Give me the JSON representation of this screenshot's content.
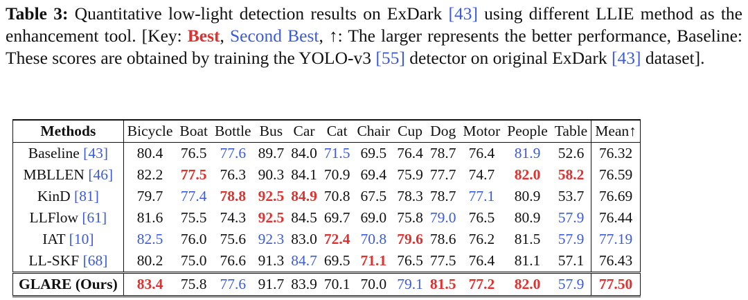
{
  "caption": {
    "label": "Table 3:",
    "parts": [
      {
        "text": " Quantitative low-light detection results on ExDark "
      },
      {
        "text": "[43]",
        "color": "#3b5bdb"
      },
      {
        "text": " using different LLIE method as the enhancement tool. [Key: "
      },
      {
        "text": "Best",
        "color": "#e03131",
        "bold": true
      },
      {
        "text": ", "
      },
      {
        "text": "Second Best",
        "color": "#3b5bdb"
      },
      {
        "text": ", ↑: The larger represents the better performance, Baseline: These scores are obtained by training the YOLO-v3 "
      },
      {
        "text": "[55]",
        "color": "#3b5bdb"
      },
      {
        "text": " detector on original ExDark "
      },
      {
        "text": "[43]",
        "color": "#3b5bdb"
      },
      {
        "text": " dataset]."
      }
    ]
  },
  "table": {
    "styles": {
      "best": {
        "color": "#e03131",
        "bold": true
      },
      "second": {
        "color": "#3b5bdb",
        "bold": false
      }
    },
    "cite_color": "#3b5bdb",
    "header": [
      "Methods",
      "Bicycle",
      "Boat",
      "Bottle",
      "Bus",
      "Car",
      "Cat",
      "Chair",
      "Cup",
      "Dog",
      "Motor",
      "People",
      "Table",
      "Mean↑"
    ],
    "rows": [
      {
        "name": "Baseline",
        "cite": "[43]",
        "bold": false,
        "values": [
          "80.4",
          "76.5",
          "77.6",
          "89.7",
          "84.0",
          "71.5",
          "69.5",
          "76.4",
          "78.7",
          "76.4",
          "81.9",
          "52.6",
          "76.32"
        ],
        "marks": [
          null,
          null,
          "second",
          null,
          null,
          "second",
          null,
          null,
          null,
          null,
          "second",
          null,
          null
        ]
      },
      {
        "name": "MBLLEN",
        "cite": "[46]",
        "bold": false,
        "values": [
          "82.2",
          "77.5",
          "76.3",
          "90.3",
          "84.1",
          "70.9",
          "69.4",
          "75.9",
          "77.7",
          "74.7",
          "82.0",
          "58.2",
          "76.59"
        ],
        "marks": [
          null,
          "best",
          null,
          null,
          null,
          null,
          null,
          null,
          null,
          null,
          "best",
          "best",
          null
        ]
      },
      {
        "name": "KinD",
        "cite": "[81]",
        "bold": false,
        "values": [
          "79.7",
          "77.4",
          "78.8",
          "92.5",
          "84.9",
          "70.8",
          "67.5",
          "78.3",
          "78.7",
          "77.1",
          "80.9",
          "53.7",
          "76.69"
        ],
        "marks": [
          null,
          "second",
          "best",
          "best",
          "best",
          null,
          null,
          null,
          null,
          "second",
          null,
          null,
          null
        ]
      },
      {
        "name": "LLFlow",
        "cite": "[61]",
        "bold": false,
        "values": [
          "81.6",
          "75.5",
          "74.3",
          "92.5",
          "84.5",
          "69.7",
          "69.0",
          "75.8",
          "79.0",
          "76.5",
          "80.9",
          "57.9",
          "76.44"
        ],
        "marks": [
          null,
          null,
          null,
          "best",
          null,
          null,
          null,
          null,
          "second",
          null,
          null,
          "second",
          null
        ]
      },
      {
        "name": "IAT",
        "cite": "[10]",
        "bold": false,
        "values": [
          "82.5",
          "76.0",
          "75.6",
          "92.3",
          "83.0",
          "72.4",
          "70.8",
          "79.6",
          "78.6",
          "76.2",
          "81.5",
          "57.9",
          "77.19"
        ],
        "marks": [
          "second",
          null,
          null,
          "second",
          null,
          "best",
          "second",
          "best",
          null,
          null,
          null,
          "second",
          "second"
        ]
      },
      {
        "name": "LL-SKF",
        "cite": "[68]",
        "bold": false,
        "values": [
          "80.2",
          "75.0",
          "76.6",
          "91.3",
          "84.7",
          "69.5",
          "71.1",
          "76.5",
          "77.5",
          "76.4",
          "81.1",
          "57.1",
          "76.43"
        ],
        "marks": [
          null,
          null,
          null,
          null,
          "second",
          null,
          "best",
          null,
          null,
          null,
          null,
          null,
          null
        ]
      },
      {
        "name": "GLARE (Ours)",
        "cite": null,
        "bold": true,
        "values": [
          "83.4",
          "75.8",
          "77.6",
          "91.7",
          "83.9",
          "70.1",
          "70.0",
          "79.1",
          "81.5",
          "77.2",
          "82.0",
          "57.9",
          "77.50"
        ],
        "marks": [
          "best",
          null,
          "second",
          null,
          null,
          null,
          null,
          "second",
          "best",
          "best",
          "best",
          "second",
          "best"
        ]
      }
    ]
  }
}
